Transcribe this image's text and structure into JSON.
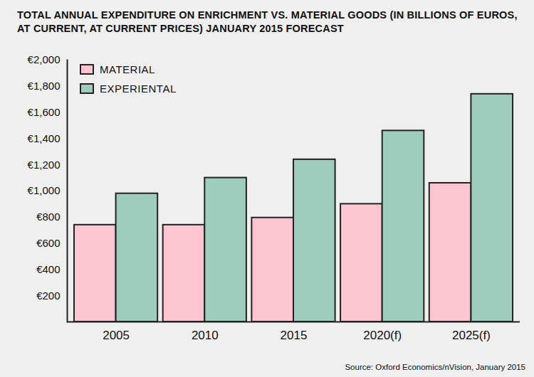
{
  "chart_data": {
    "type": "bar",
    "title": "TOTAL ANNUAL EXPENDITURE ON ENRICHMENT VS. MATERIAL GOODS (IN BILLIONS OF EUROS, AT CURRENT, AT CURRENT PRICES) JANUARY 2015 FORECAST",
    "source": "Source: Oxford Economics/nVision, January 2015",
    "categories": [
      "2005",
      "2010",
      "2015",
      "2020(f)",
      "2025(f)"
    ],
    "series": [
      {
        "name": "MATERIAL",
        "color": "#fdc4d2",
        "values": [
          740,
          740,
          795,
          900,
          1060
        ]
      },
      {
        "name": "EXPERIENTAL",
        "color": "#9fcdbd",
        "values": [
          980,
          1100,
          1240,
          1460,
          1740
        ]
      }
    ],
    "ylim": [
      0,
      2000
    ],
    "yticks": [
      {
        "value": 200,
        "label": "€200"
      },
      {
        "value": 400,
        "label": "€400"
      },
      {
        "value": 600,
        "label": "€600"
      },
      {
        "value": 800,
        "label": "€800"
      },
      {
        "value": 1000,
        "label": "€1,000"
      },
      {
        "value": 1200,
        "label": "€1,200"
      },
      {
        "value": 1400,
        "label": "€1,400"
      },
      {
        "value": 1600,
        "label": "€1,600"
      },
      {
        "value": 1800,
        "label": "€1,800"
      },
      {
        "value": 2000,
        "label": "€2,000"
      }
    ],
    "grid": false,
    "legend": "upper left"
  }
}
